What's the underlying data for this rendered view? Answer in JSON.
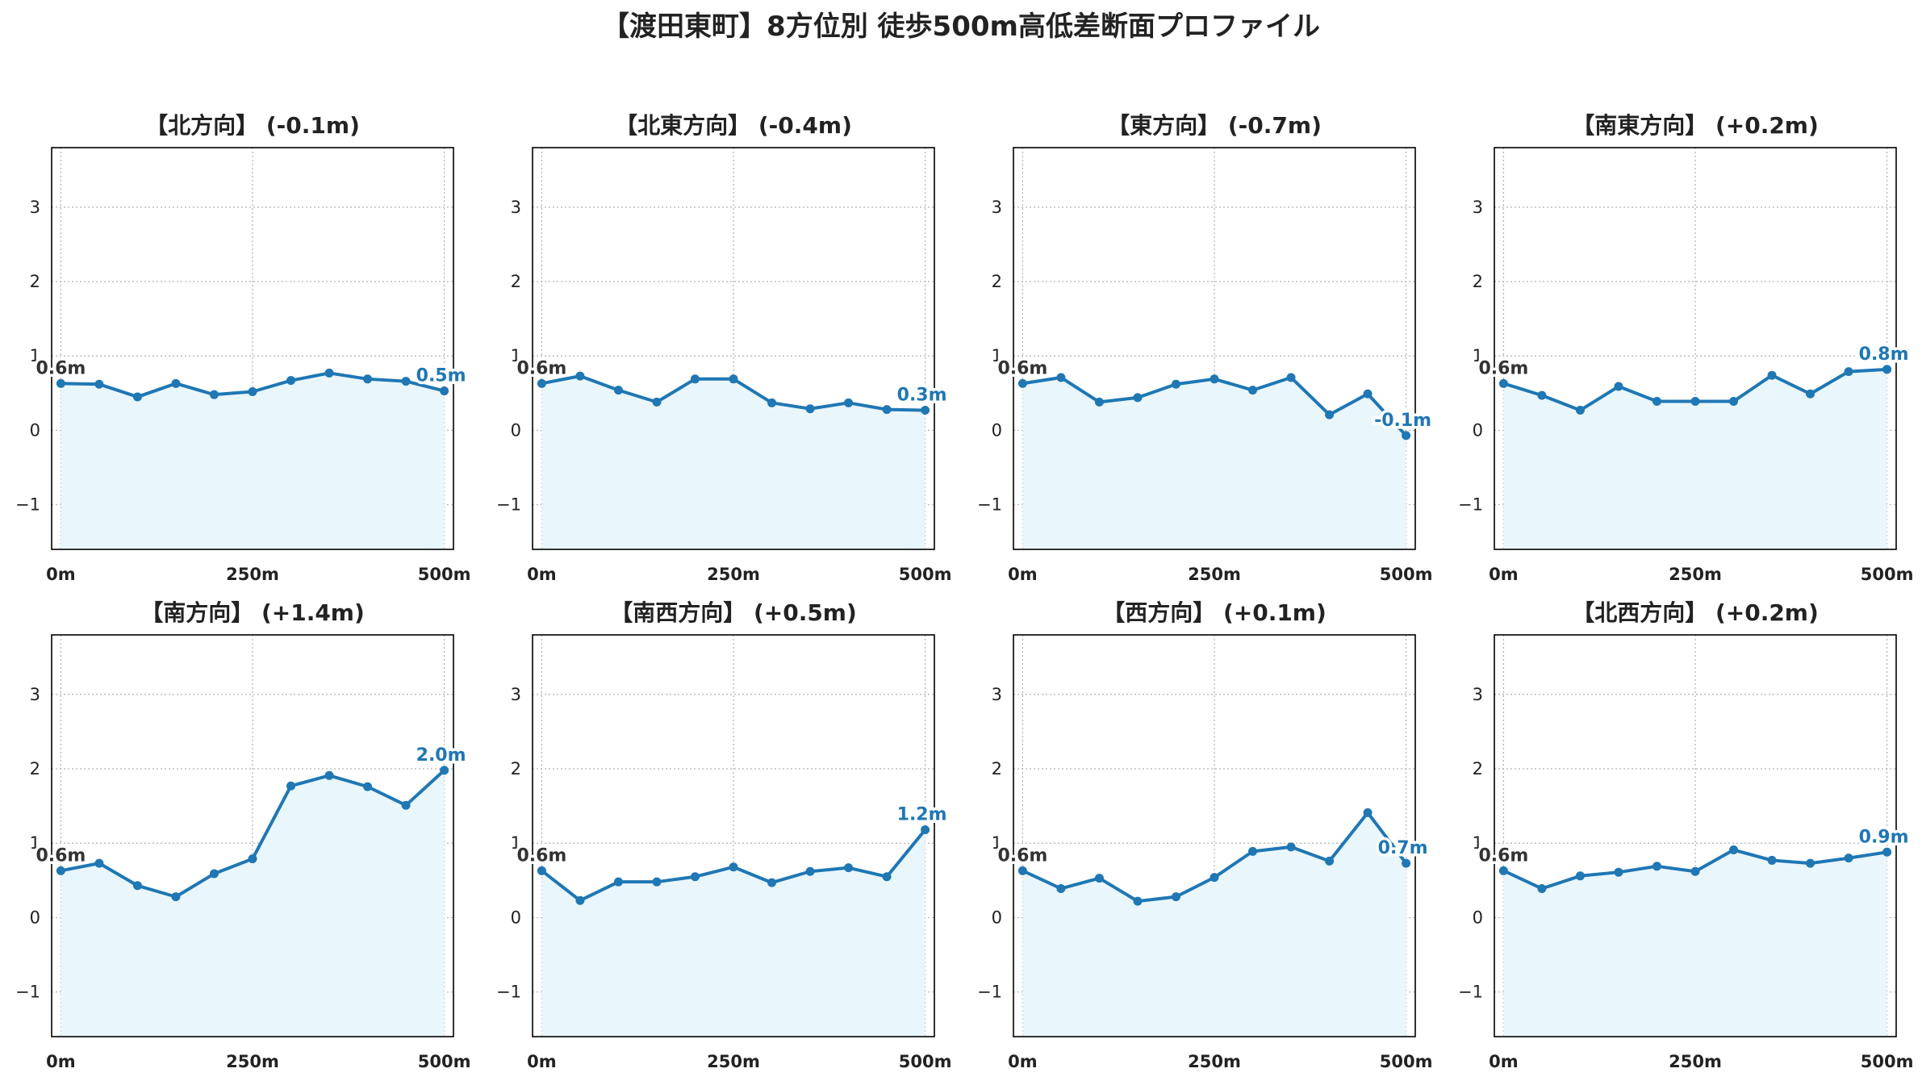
{
  "title": "【渡田東町】8方位別 徒歩500m高低差断面プロファイル",
  "colors": {
    "line": "#1f77b4",
    "fill": "#e9f6fc",
    "start_label": "#333333",
    "end_label": "#1f77b4"
  },
  "chart_data": [
    {
      "type": "area",
      "title": "【北方向】 (-0.1m)",
      "x": [
        0,
        50,
        100,
        150,
        200,
        250,
        300,
        350,
        400,
        450,
        500
      ],
      "values": [
        0.63,
        0.62,
        0.45,
        0.63,
        0.48,
        0.52,
        0.67,
        0.77,
        0.69,
        0.66,
        0.53
      ],
      "xticks": [
        "0m",
        "250m",
        "500m"
      ],
      "yticks": [
        "−1",
        "0",
        "1",
        "2",
        "3"
      ],
      "ylim": [
        -1.6,
        3.8
      ],
      "xlim": [
        -12,
        512
      ],
      "grid": true,
      "start_label": "0.6m",
      "end_label": "0.5m"
    },
    {
      "type": "area",
      "title": "【北東方向】 (-0.4m)",
      "x": [
        0,
        50,
        100,
        150,
        200,
        250,
        300,
        350,
        400,
        450,
        500
      ],
      "values": [
        0.63,
        0.73,
        0.54,
        0.38,
        0.69,
        0.69,
        0.37,
        0.29,
        0.37,
        0.28,
        0.27
      ],
      "xticks": [
        "0m",
        "250m",
        "500m"
      ],
      "yticks": [
        "−1",
        "0",
        "1",
        "2",
        "3"
      ],
      "ylim": [
        -1.6,
        3.8
      ],
      "xlim": [
        -12,
        512
      ],
      "grid": true,
      "start_label": "0.6m",
      "end_label": "0.3m"
    },
    {
      "type": "area",
      "title": "【東方向】 (-0.7m)",
      "x": [
        0,
        50,
        100,
        150,
        200,
        250,
        300,
        350,
        400,
        450,
        500
      ],
      "values": [
        0.63,
        0.71,
        0.38,
        0.44,
        0.62,
        0.69,
        0.54,
        0.71,
        0.21,
        0.49,
        -0.07
      ],
      "xticks": [
        "0m",
        "250m",
        "500m"
      ],
      "yticks": [
        "−1",
        "0",
        "1",
        "2",
        "3"
      ],
      "ylim": [
        -1.6,
        3.8
      ],
      "xlim": [
        -12,
        512
      ],
      "grid": true,
      "start_label": "0.6m",
      "end_label": "-0.1m"
    },
    {
      "type": "area",
      "title": "【南東方向】 (+0.2m)",
      "x": [
        0,
        50,
        100,
        150,
        200,
        250,
        300,
        350,
        400,
        450,
        500
      ],
      "values": [
        0.63,
        0.47,
        0.27,
        0.59,
        0.39,
        0.39,
        0.39,
        0.74,
        0.49,
        0.79,
        0.82
      ],
      "xticks": [
        "0m",
        "250m",
        "500m"
      ],
      "yticks": [
        "−1",
        "0",
        "1",
        "2",
        "3"
      ],
      "ylim": [
        -1.6,
        3.8
      ],
      "xlim": [
        -12,
        512
      ],
      "grid": true,
      "start_label": "0.6m",
      "end_label": "0.8m"
    },
    {
      "type": "area",
      "title": "【南方向】 (+1.4m)",
      "x": [
        0,
        50,
        100,
        150,
        200,
        250,
        300,
        350,
        400,
        450,
        500
      ],
      "values": [
        0.63,
        0.73,
        0.43,
        0.28,
        0.59,
        0.79,
        1.77,
        1.91,
        1.76,
        1.51,
        1.98
      ],
      "xticks": [
        "0m",
        "250m",
        "500m"
      ],
      "yticks": [
        "−1",
        "0",
        "1",
        "2",
        "3"
      ],
      "ylim": [
        -1.6,
        3.8
      ],
      "xlim": [
        -12,
        512
      ],
      "grid": true,
      "start_label": "0.6m",
      "end_label": "2.0m"
    },
    {
      "type": "area",
      "title": "【南西方向】 (+0.5m)",
      "x": [
        0,
        50,
        100,
        150,
        200,
        250,
        300,
        350,
        400,
        450,
        500
      ],
      "values": [
        0.63,
        0.23,
        0.48,
        0.48,
        0.55,
        0.68,
        0.47,
        0.62,
        0.67,
        0.55,
        1.18
      ],
      "xticks": [
        "0m",
        "250m",
        "500m"
      ],
      "yticks": [
        "−1",
        "0",
        "1",
        "2",
        "3"
      ],
      "ylim": [
        -1.6,
        3.8
      ],
      "xlim": [
        -12,
        512
      ],
      "grid": true,
      "start_label": "0.6m",
      "end_label": "1.2m"
    },
    {
      "type": "area",
      "title": "【西方向】 (+0.1m)",
      "x": [
        0,
        50,
        100,
        150,
        200,
        250,
        300,
        350,
        400,
        450,
        500
      ],
      "values": [
        0.63,
        0.39,
        0.53,
        0.22,
        0.28,
        0.54,
        0.89,
        0.95,
        0.76,
        1.41,
        0.73
      ],
      "xticks": [
        "0m",
        "250m",
        "500m"
      ],
      "yticks": [
        "−1",
        "0",
        "1",
        "2",
        "3"
      ],
      "ylim": [
        -1.6,
        3.8
      ],
      "xlim": [
        -12,
        512
      ],
      "grid": true,
      "start_label": "0.6m",
      "end_label": "0.7m"
    },
    {
      "type": "area",
      "title": "【北西方向】 (+0.2m)",
      "x": [
        0,
        50,
        100,
        150,
        200,
        250,
        300,
        350,
        400,
        450,
        500
      ],
      "values": [
        0.63,
        0.39,
        0.56,
        0.61,
        0.69,
        0.62,
        0.91,
        0.77,
        0.73,
        0.8,
        0.88
      ],
      "xticks": [
        "0m",
        "250m",
        "500m"
      ],
      "yticks": [
        "−1",
        "0",
        "1",
        "2",
        "3"
      ],
      "ylim": [
        -1.6,
        3.8
      ],
      "xlim": [
        -12,
        512
      ],
      "grid": true,
      "start_label": "0.6m",
      "end_label": "0.9m"
    }
  ]
}
